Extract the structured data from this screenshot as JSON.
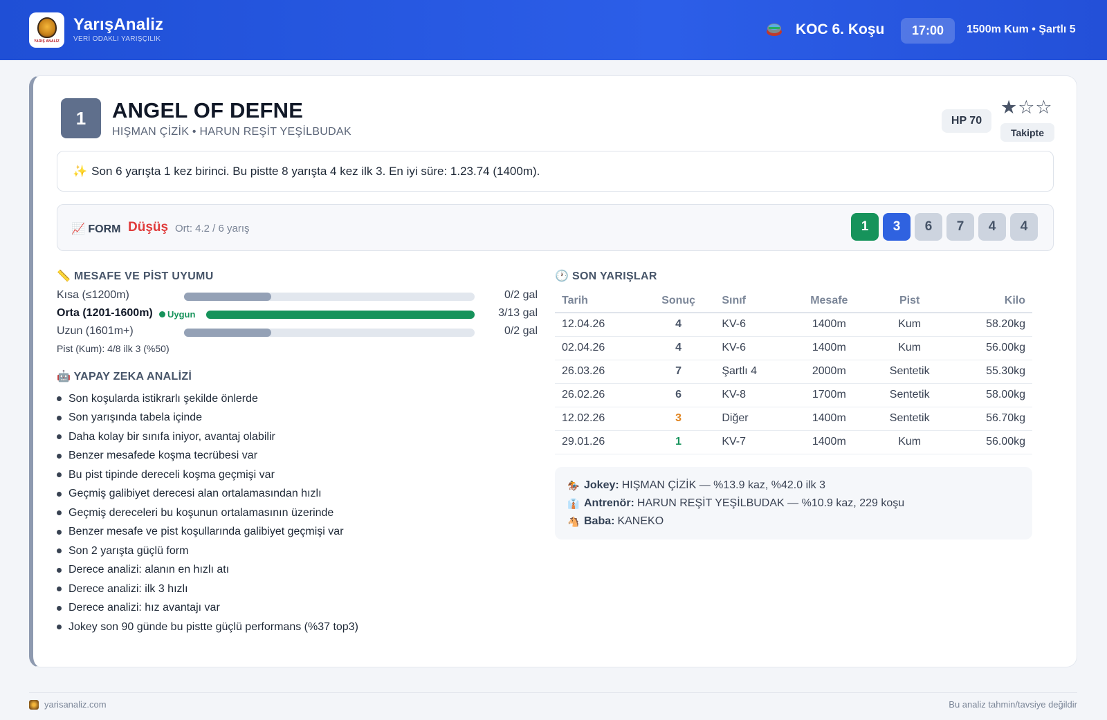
{
  "header": {
    "brand_name": "YarışAnaliz",
    "brand_tagline": "VERİ ODAKLI YARIŞÇILIK",
    "logo_text": "YARIŞ ANALİZ",
    "race_name": "KOC 6. Koşu",
    "race_time": "17:00",
    "race_conditions": "1500m Kum • Şartlı 5"
  },
  "horse": {
    "number": "1",
    "name": "ANGEL OF DEFNE",
    "subtitle": "HIŞMAN ÇİZİK • HARUN REŞİT YEŞİLBUDAK",
    "hp": "HP 70",
    "stars": "★☆☆",
    "rating": 1,
    "status": "Takipte"
  },
  "summary": {
    "icon": "✨",
    "text": "Son 6 yarışta 1 kez birinci. Bu pistte 8 yarışta 4 kez ilk 3. En iyi süre: 1.23.74 (1400m)."
  },
  "form": {
    "icon": "📈",
    "label": "FORM",
    "trend": "Düşüş",
    "average": "Ort: 4.2 / 6 yarış",
    "chips": [
      {
        "value": "1",
        "color": "#16935b",
        "text_color": "#ffffff"
      },
      {
        "value": "3",
        "color": "#2f62e0",
        "text_color": "#ffffff"
      },
      {
        "value": "6",
        "color": "#cdd4df",
        "text_color": "#475569"
      },
      {
        "value": "7",
        "color": "#cdd4df",
        "text_color": "#475569"
      },
      {
        "value": "4",
        "color": "#cdd4df",
        "text_color": "#475569"
      },
      {
        "value": "4",
        "color": "#cdd4df",
        "text_color": "#475569"
      }
    ]
  },
  "distance": {
    "title": "📏 MESAFE VE PİST UYUMU",
    "rows": [
      {
        "label": "Kısa (≤1200m)",
        "value": "0/2 gal",
        "fill": 0.3,
        "color": "#94a1b6"
      },
      {
        "label": "Orta (1201-1600m)",
        "badge": "Uygun",
        "value": "3/13 gal",
        "fill": 1.0,
        "color": "#16935b"
      },
      {
        "label": "Uzun (1601m+)",
        "value": "0/2 gal",
        "fill": 0.3,
        "color": "#94a1b6"
      }
    ],
    "pist_note": "Pist (Kum): 4/8 ilk 3 (%50)"
  },
  "ai": {
    "title": "🤖 YAPAY ZEKA ANALİZİ",
    "items": [
      "Son koşularda istikrarlı şekilde önlerde",
      "Son yarışında tabela içinde",
      "Daha kolay bir sınıfa iniyor, avantaj olabilir",
      "Benzer mesafede koşma tecrübesi var",
      "Bu pist tipinde dereceli koşma geçmişi var",
      "Geçmiş galibiyet derecesi alan ortalamasından hızlı",
      "Geçmiş dereceleri bu koşunun ortalamasının üzerinde",
      "Benzer mesafe ve pist koşullarında galibiyet geçmişi var",
      "Son 2 yarışta güçlü form",
      "Derece analizi: alanın en hızlı atı",
      "Derece analizi: ilk 3 hızlı",
      "Derece analizi: hız avantajı var",
      "Jokey son 90 günde bu pistte güçlü performans (%37 top3)"
    ]
  },
  "races": {
    "title": "🕐 SON YARIŞLAR",
    "headers": [
      "Tarih",
      "Sonuç",
      "Sınıf",
      "Mesafe",
      "Pist",
      "Kilo"
    ],
    "rows": [
      {
        "date": "12.04.26",
        "result": "4",
        "result_color": "#4a5568",
        "class": "KV-6",
        "distance": "1400m",
        "track": "Kum",
        "weight": "58.20kg"
      },
      {
        "date": "02.04.26",
        "result": "4",
        "result_color": "#4a5568",
        "class": "KV-6",
        "distance": "1400m",
        "track": "Kum",
        "weight": "56.00kg"
      },
      {
        "date": "26.03.26",
        "result": "7",
        "result_color": "#4a5568",
        "class": "Şartlı 4",
        "distance": "2000m",
        "track": "Sentetik",
        "weight": "55.30kg"
      },
      {
        "date": "26.02.26",
        "result": "6",
        "result_color": "#4a5568",
        "class": "KV-8",
        "distance": "1700m",
        "track": "Sentetik",
        "weight": "58.00kg"
      },
      {
        "date": "12.02.26",
        "result": "3",
        "result_color": "#e0841f",
        "class": "Diğer",
        "distance": "1400m",
        "track": "Sentetik",
        "weight": "56.70kg"
      },
      {
        "date": "29.01.26",
        "result": "1",
        "result_color": "#16935b",
        "class": "KV-7",
        "distance": "1400m",
        "track": "Kum",
        "weight": "56.00kg"
      }
    ]
  },
  "info": {
    "jokey_icon": "🏇",
    "jokey_label": "Jokey:",
    "jokey_value": "HIŞMAN ÇİZİK — %13.9 kaz, %42.0 ilk 3",
    "trainer_icon": "👔",
    "trainer_label": "Antrenör:",
    "trainer_value": "HARUN REŞİT YEŞİLBUDAK — %10.9 kaz, 229 koşu",
    "sire_icon": "🐴",
    "sire_label": "Baba:",
    "sire_value": "KANEKO"
  },
  "footer": {
    "site": "yarisanaliz.com",
    "disclaimer": "Bu analiz tahmin/tavsiye değildir"
  }
}
